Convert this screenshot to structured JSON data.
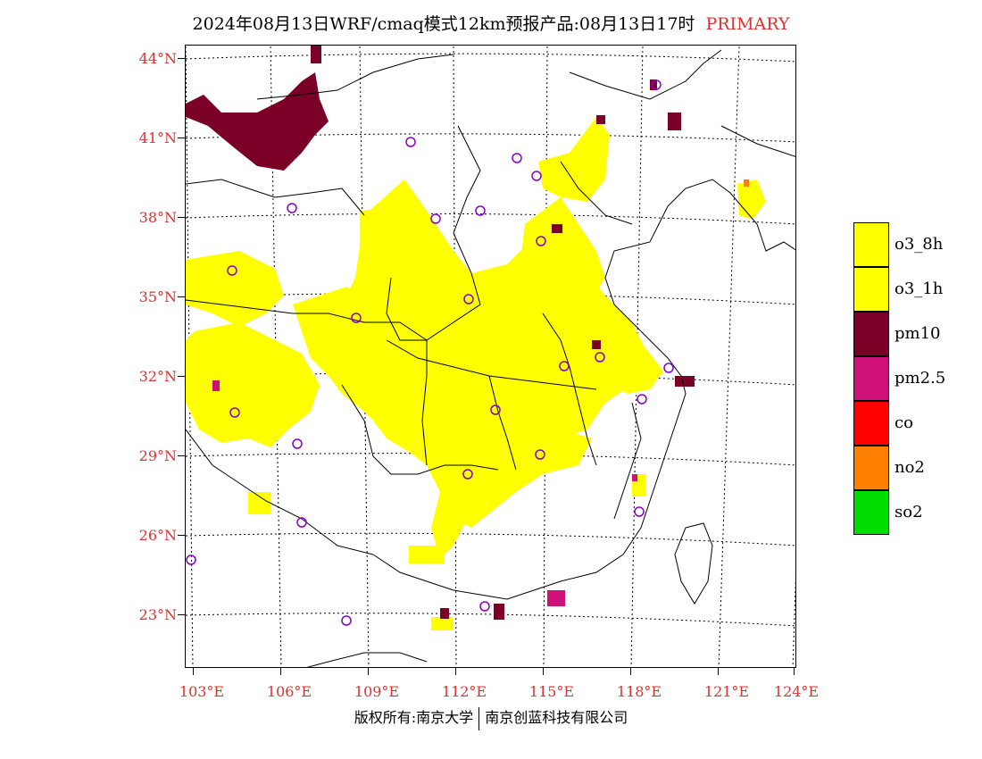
{
  "title": {
    "main": "2024年08月13日WRF/cmaq模式12km预报产品:08月13日17时",
    "tag": "PRIMARY"
  },
  "axes": {
    "lat_labels": [
      "44°N",
      "41°N",
      "38°N",
      "35°N",
      "32°N",
      "29°N",
      "26°N",
      "23°N"
    ],
    "lon_labels": [
      "103°E",
      "106°E",
      "109°E",
      "112°E",
      "115°E",
      "118°E",
      "121°E",
      "124°E"
    ]
  },
  "legend": [
    {
      "label": "o3_8h",
      "color": "#ffff00"
    },
    {
      "label": "o3_1h",
      "color": "#ffff00"
    },
    {
      "label": "pm10",
      "color": "#7a0028"
    },
    {
      "label": "pm2.5",
      "color": "#d0107a"
    },
    {
      "label": "co",
      "color": "#ff0000"
    },
    {
      "label": "no2",
      "color": "#ff8000"
    },
    {
      "label": "so2",
      "color": "#00dd00"
    }
  ],
  "footer": {
    "left": "版权所有:南京大学",
    "right": "南京创蓝科技有限公司"
  },
  "colors": {
    "ozone": "#ffff00",
    "pm10": "#7a0028",
    "pm25": "#d0107a",
    "no2": "#ff8000",
    "station": "#8a00c8",
    "label_red": "#e03030"
  }
}
